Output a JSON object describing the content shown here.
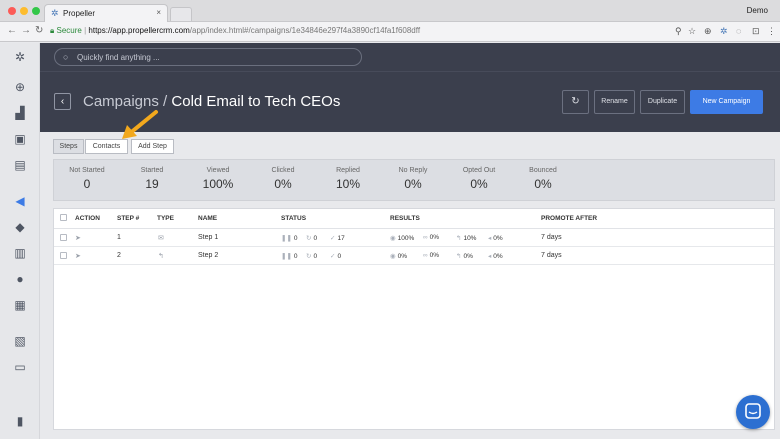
{
  "browser": {
    "tab_title": "Propeller",
    "tab_close": "×",
    "profile": "Demo",
    "url_secure": "Secure",
    "url_host": "https://app.propellercrm.com",
    "url_path": "/app/index.html#/campaigns/1e34846e297f4a3890cf14fa1f608dff"
  },
  "search": {
    "placeholder": "Quickly find anything ..."
  },
  "header": {
    "breadcrumb": "Campaigns /",
    "title": "Cold Email to Tech CEOs",
    "back_glyph": "‹",
    "refresh_glyph": "↻",
    "rename": "Rename",
    "duplicate": "Duplicate",
    "new_campaign": "New Campaign"
  },
  "tabs": [
    "Steps",
    "Contacts",
    "Add Step"
  ],
  "stats": [
    {
      "label": "Not Started",
      "value": "0"
    },
    {
      "label": "Started",
      "value": "19"
    },
    {
      "label": "Viewed",
      "value": "100%"
    },
    {
      "label": "Clicked",
      "value": "0%"
    },
    {
      "label": "Replied",
      "value": "10%"
    },
    {
      "label": "No Reply",
      "value": "0%"
    },
    {
      "label": "Opted Out",
      "value": "0%"
    },
    {
      "label": "Bounced",
      "value": "0%"
    }
  ],
  "table": {
    "columns": [
      "ACTION",
      "STEP #",
      "TYPE",
      "NAME",
      "STATUS",
      "RESULTS",
      "PROMOTE AFTER"
    ],
    "rows": [
      {
        "step": "1",
        "type_icon": "✉",
        "name": "Step 1",
        "status": [
          "0",
          "0",
          "17"
        ],
        "results": [
          "100%",
          "0%",
          "10%",
          "0%"
        ],
        "promote": "7 days"
      },
      {
        "step": "2",
        "type_icon": "↰",
        "name": "Step 2",
        "status": [
          "0",
          "0",
          "0"
        ],
        "results": [
          "0%",
          "0%",
          "0%",
          "0%"
        ],
        "promote": "7 days"
      }
    ]
  },
  "colors": {
    "accent": "#3d7be5",
    "header_bg": "#3b3f4d",
    "arrow": "#f2a81d"
  }
}
